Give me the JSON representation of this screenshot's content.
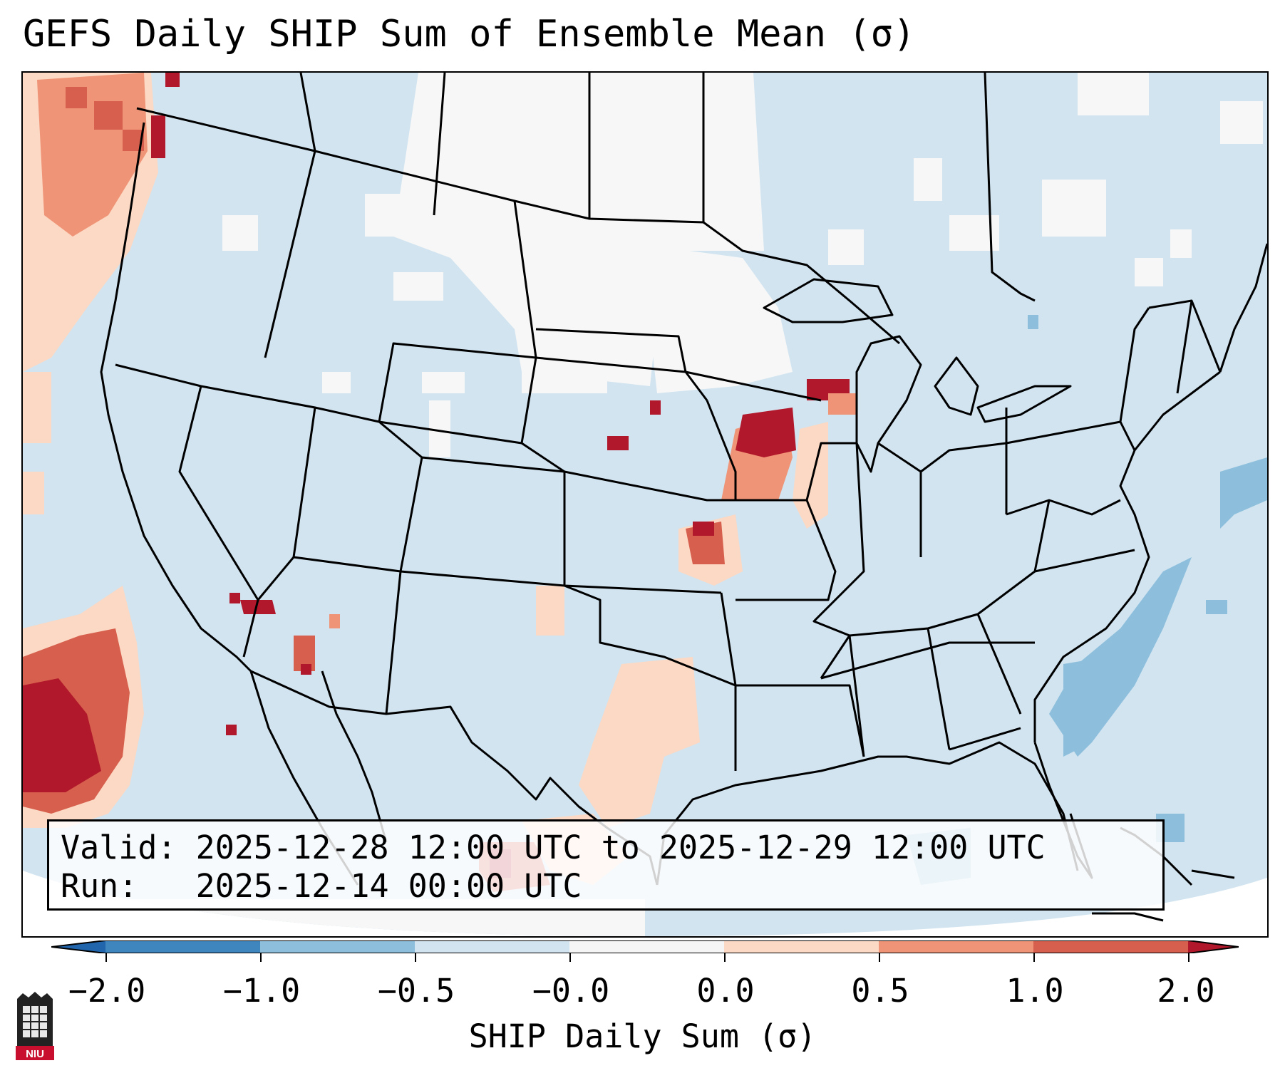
{
  "title": "GEFS Daily SHIP Sum of Ensemble Mean (σ)",
  "info": {
    "valid_label": "Valid:",
    "valid_value": "2025-12-28 12:00 UTC to 2025-12-29 12:00 UTC",
    "run_label": "Run:",
    "run_value": "2025-12-14 00:00 UTC"
  },
  "colorbar": {
    "label": "SHIP Daily Sum (σ)",
    "ticks": [
      "−2.0",
      "−1.0",
      "−0.5",
      "−0.0",
      "0.0",
      "0.5",
      "1.0",
      "2.0"
    ],
    "colors": [
      "#3f86bf",
      "#8dbfdc",
      "#d1e4f0",
      "#f5f5f5",
      "#fcd9c4",
      "#ef9476",
      "#d6604d",
      "#b2182b"
    ],
    "extend": "both"
  },
  "map": {
    "background_value_color": "#d1e4f0",
    "projection": "lambert-conformal",
    "region": "CONUS",
    "features": [
      "state-borders",
      "country-borders",
      "coastlines"
    ]
  },
  "logo_text": "NIU"
}
